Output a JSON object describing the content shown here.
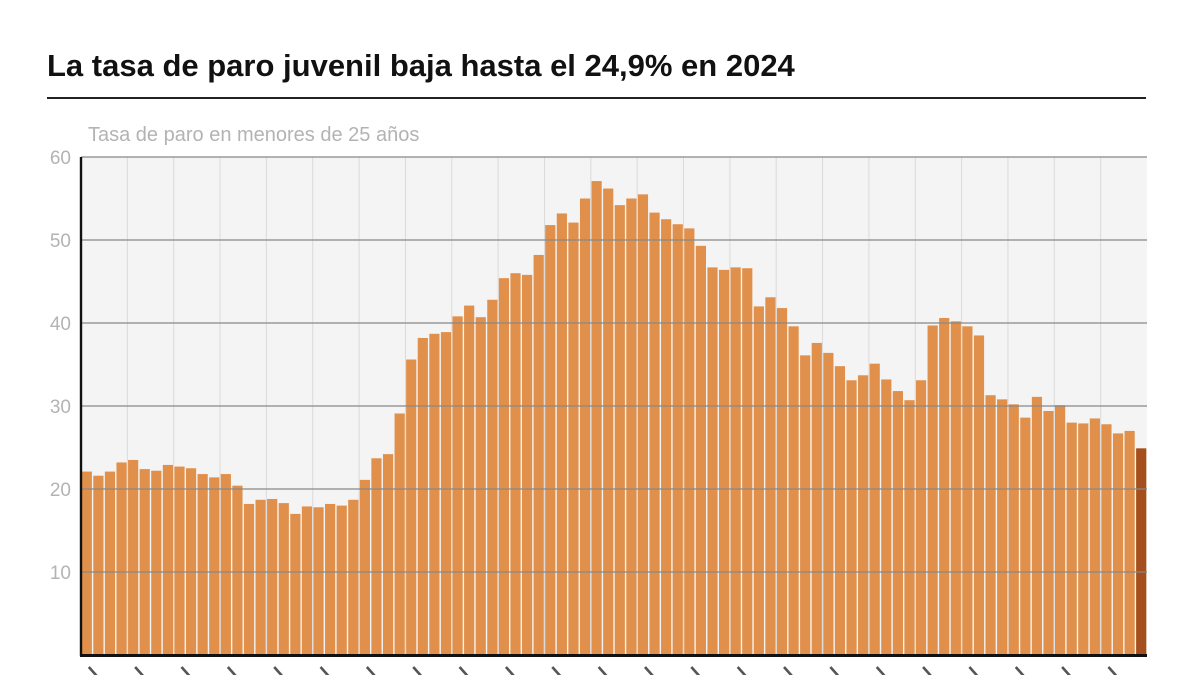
{
  "title": "La tasa de paro juvenil baja hasta el 24,9% en 2024",
  "colors": {
    "bar": "#E0904B",
    "bar_highlight": "#A5501C",
    "plot_background": "#F4F4F4",
    "gridline": "#888888",
    "vertical_gridline": "#DADADA",
    "axis": "#111111",
    "tick_text": "#B3B3B3"
  },
  "chart_data": {
    "type": "bar",
    "title": "La tasa de paro juvenil baja hasta el 24,9% en 2024",
    "ylabel": "Tasa de paro en menores de 25 años",
    "xlabel": "",
    "ylim": [
      0,
      60
    ],
    "yticks": [
      10,
      20,
      30,
      40,
      50,
      60
    ],
    "grid": true,
    "bars_per_year": 4,
    "highlight_last": true,
    "values": [
      22.1,
      21.6,
      22.1,
      23.2,
      23.5,
      22.4,
      22.2,
      22.9,
      22.7,
      22.5,
      21.8,
      21.4,
      21.8,
      20.4,
      18.2,
      18.7,
      18.8,
      18.3,
      17.0,
      17.9,
      17.8,
      18.2,
      18.0,
      18.7,
      21.1,
      23.7,
      24.2,
      29.1,
      35.6,
      38.2,
      38.7,
      38.9,
      40.8,
      42.1,
      40.7,
      42.8,
      45.4,
      46.0,
      45.8,
      48.2,
      51.8,
      53.2,
      52.1,
      55.0,
      57.1,
      56.2,
      54.2,
      55.0,
      55.5,
      53.3,
      52.5,
      51.9,
      51.4,
      49.3,
      46.7,
      46.4,
      46.7,
      46.6,
      42.0,
      43.1,
      41.8,
      39.6,
      36.1,
      37.6,
      36.4,
      34.8,
      33.1,
      33.7,
      35.1,
      33.2,
      31.8,
      30.7,
      33.1,
      39.7,
      40.6,
      40.2,
      39.6,
      38.5,
      31.3,
      30.8,
      30.2,
      28.6,
      31.1,
      29.4,
      30.1,
      28.0,
      27.9,
      28.5,
      27.8,
      26.7,
      27.0,
      24.9
    ]
  }
}
